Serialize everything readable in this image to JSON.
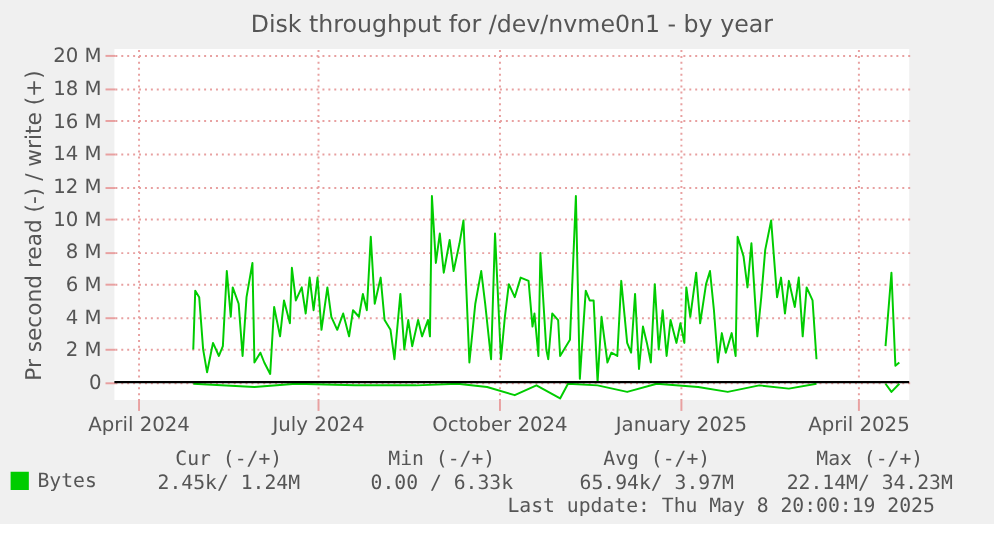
{
  "chart_data": {
    "type": "line",
    "title": "Disk throughput for /dev/nvme0n1 - by year",
    "ylabel": "Pr second read (-) / write (+)",
    "xlim": [
      "2024-03-20",
      "2025-04-27"
    ],
    "xticks": [
      {
        "value": "2024-04-01",
        "label": "April 2024"
      },
      {
        "value": "2024-07-01",
        "label": "July 2024"
      },
      {
        "value": "2024-10-01",
        "label": "October 2024"
      },
      {
        "value": "2025-01-01",
        "label": "January 2025"
      },
      {
        "value": "2025-04-01",
        "label": "April 2025"
      }
    ],
    "ylim": [
      -1.1,
      20.4
    ],
    "yticks": [
      {
        "value": 0,
        "label": "0"
      },
      {
        "value": 2,
        "label": "2 M"
      },
      {
        "value": 4,
        "label": "4 M"
      },
      {
        "value": 6,
        "label": "6 M"
      },
      {
        "value": 8,
        "label": "8 M"
      },
      {
        "value": 10,
        "label": "10 M"
      },
      {
        "value": 12,
        "label": "12 M"
      },
      {
        "value": 14,
        "label": "14 M"
      },
      {
        "value": 16,
        "label": "16 M"
      },
      {
        "value": 18,
        "label": "18 M"
      },
      {
        "value": 20,
        "label": "20 M"
      }
    ],
    "grid": true,
    "legend": "bottom left",
    "marker": "none",
    "line_style": "solid",
    "ref_lines": [
      {
        "axis": "y",
        "value": 0,
        "color": "#000000"
      }
    ],
    "series": [
      {
        "name": "Bytes",
        "color": "#00cc00",
        "x": [
          "2024-04-29",
          "2024-04-30",
          "2024-05-02",
          "2024-05-04",
          "2024-05-06",
          "2024-05-09",
          "2024-05-12",
          "2024-05-14",
          "2024-05-16",
          "2024-05-18",
          "2024-05-19",
          "2024-05-22",
          "2024-05-24",
          "2024-05-26",
          "2024-05-29",
          "2024-05-30",
          "2024-06-02",
          "2024-06-04",
          "2024-06-07",
          "2024-06-09",
          "2024-06-12",
          "2024-06-14",
          "2024-06-17",
          "2024-06-18",
          "2024-06-20",
          "2024-06-23",
          "2024-06-25",
          "2024-06-27",
          "2024-06-29",
          "2024-07-01",
          "2024-07-03",
          "2024-07-06",
          "2024-07-08",
          "2024-07-11",
          "2024-07-14",
          "2024-07-17",
          "2024-07-19",
          "2024-07-22",
          "2024-07-24",
          "2024-07-26",
          "2024-07-28",
          "2024-07-30",
          "2024-08-02",
          "2024-08-04",
          "2024-08-07",
          "2024-08-09",
          "2024-08-12",
          "2024-08-14",
          "2024-08-16",
          "2024-08-18",
          "2024-08-21",
          "2024-08-23",
          "2024-08-26",
          "2024-08-27",
          "2024-08-28",
          "2024-08-30",
          "2024-09-01",
          "2024-09-03",
          "2024-09-06",
          "2024-09-08",
          "2024-09-11",
          "2024-09-13",
          "2024-09-16",
          "2024-09-19",
          "2024-09-22",
          "2024-09-24",
          "2024-09-27",
          "2024-09-29",
          "2024-10-02",
          "2024-10-04",
          "2024-10-06",
          "2024-10-09",
          "2024-10-12",
          "2024-10-16",
          "2024-10-18",
          "2024-10-19",
          "2024-10-21",
          "2024-10-22",
          "2024-10-25",
          "2024-10-26",
          "2024-10-28",
          "2024-10-31",
          "2024-11-01",
          "2024-11-04",
          "2024-11-06",
          "2024-11-09",
          "2024-11-11",
          "2024-11-14",
          "2024-11-16",
          "2024-11-18",
          "2024-11-20",
          "2024-11-22",
          "2024-11-25",
          "2024-11-27",
          "2024-11-30",
          "2024-12-02",
          "2024-12-05",
          "2024-12-07",
          "2024-12-09",
          "2024-12-11",
          "2024-12-13",
          "2024-12-15",
          "2024-12-17",
          "2024-12-19",
          "2024-12-21",
          "2024-12-23",
          "2024-12-25",
          "2024-12-27",
          "2024-12-30",
          "2025-01-01",
          "2025-01-03",
          "2025-01-04",
          "2025-01-06",
          "2025-01-09",
          "2025-01-11",
          "2025-01-14",
          "2025-01-16",
          "2025-01-18",
          "2025-01-20",
          "2025-01-22",
          "2025-01-24",
          "2025-01-27",
          "2025-01-29",
          "2025-01-30",
          "2025-02-02",
          "2025-02-04",
          "2025-02-06",
          "2025-02-09",
          "2025-02-11",
          "2025-02-13",
          "2025-02-16",
          "2025-02-19",
          "2025-02-21",
          "2025-02-23",
          "2025-02-25",
          "2025-02-28",
          "2025-03-02",
          "2025-03-04",
          "2025-03-06",
          "2025-03-09",
          "2025-03-11",
          "2025-03-25",
          "2025-04-15",
          "2025-04-18",
          "2025-04-20",
          "2025-04-22"
        ],
        "values": [
          2.0,
          5.6,
          5.2,
          2.0,
          0.6,
          2.4,
          1.6,
          2.2,
          6.8,
          4.0,
          5.8,
          4.8,
          1.6,
          5.2,
          7.3,
          1.2,
          1.8,
          1.2,
          0.5,
          4.6,
          2.8,
          5.0,
          3.6,
          7.0,
          5.0,
          5.8,
          4.2,
          6.4,
          4.4,
          6.4,
          3.2,
          5.8,
          4.0,
          3.2,
          4.2,
          2.8,
          4.4,
          4.0,
          5.4,
          4.4,
          8.9,
          4.8,
          6.4,
          3.8,
          3.2,
          1.4,
          5.4,
          2.0,
          3.8,
          2.2,
          3.8,
          2.8,
          3.8,
          2.8,
          11.4,
          7.3,
          9.1,
          6.7,
          8.7,
          6.8,
          8.5,
          9.9,
          1.2,
          4.8,
          6.8,
          4.8,
          1.4,
          9.1,
          1.4,
          4.0,
          6.0,
          5.2,
          6.4,
          6.2,
          3.4,
          4.2,
          1.6,
          7.9,
          2.0,
          1.4,
          4.2,
          3.8,
          1.6,
          2.2,
          2.6,
          11.4,
          0.2,
          5.6,
          5.0,
          5.0,
          0,
          4.0,
          1.2,
          1.8,
          1.6,
          6.2,
          2.4,
          1.8,
          5.4,
          0.8,
          3.4,
          2.4,
          1.2,
          6.0,
          2.0,
          4.4,
          1.6,
          3.8,
          2.4,
          3.6,
          2.4,
          5.8,
          4.0,
          6.7,
          3.6,
          6.0,
          6.8,
          4.4,
          1.2,
          3.0,
          1.8,
          3.0,
          1.6,
          8.9,
          7.7,
          5.8,
          8.5,
          2.8,
          5.2,
          8.1,
          9.9,
          5.2,
          6.4,
          4.2,
          6.2,
          4.6,
          6.4,
          2.8,
          5.8,
          5.0,
          1.4,
          null,
          2.2,
          6.7,
          1.0,
          1.2
        ]
      },
      {
        "color": "#00cc00",
        "x": [
          "2024-04-29",
          "2024-05-30",
          "2024-06-20",
          "2024-07-20",
          "2024-08-20",
          "2024-09-10",
          "2024-09-25",
          "2024-10-09",
          "2024-10-20",
          "2024-11-01",
          "2024-11-05",
          "2024-11-20",
          "2024-12-05",
          "2024-12-20",
          "2025-01-10",
          "2025-01-25",
          "2025-02-10",
          "2025-02-25",
          "2025-03-11",
          "2025-03-25",
          "2025-04-15",
          "2025-04-18",
          "2025-04-22"
        ],
        "values": [
          -0.1,
          -0.3,
          -0.1,
          -0.2,
          -0.2,
          -0.1,
          -0.3,
          -0.8,
          -0.2,
          -1.0,
          -0.1,
          -0.2,
          -0.6,
          -0.1,
          -0.3,
          -0.6,
          -0.2,
          -0.4,
          -0.1,
          null,
          -0.1,
          -0.6,
          -0.1
        ]
      }
    ],
    "annotations": [
      "Cur (-/+)",
      "Min (-/+)",
      "Avg (-/+)",
      "Max (-/+)",
      "2.45k/  1.24M",
      "0.00 /  6.33k",
      "65.94k/  3.97M",
      "22.14M/ 34.23M",
      "Last update: Thu May  8 20:00:19 2025"
    ]
  }
}
